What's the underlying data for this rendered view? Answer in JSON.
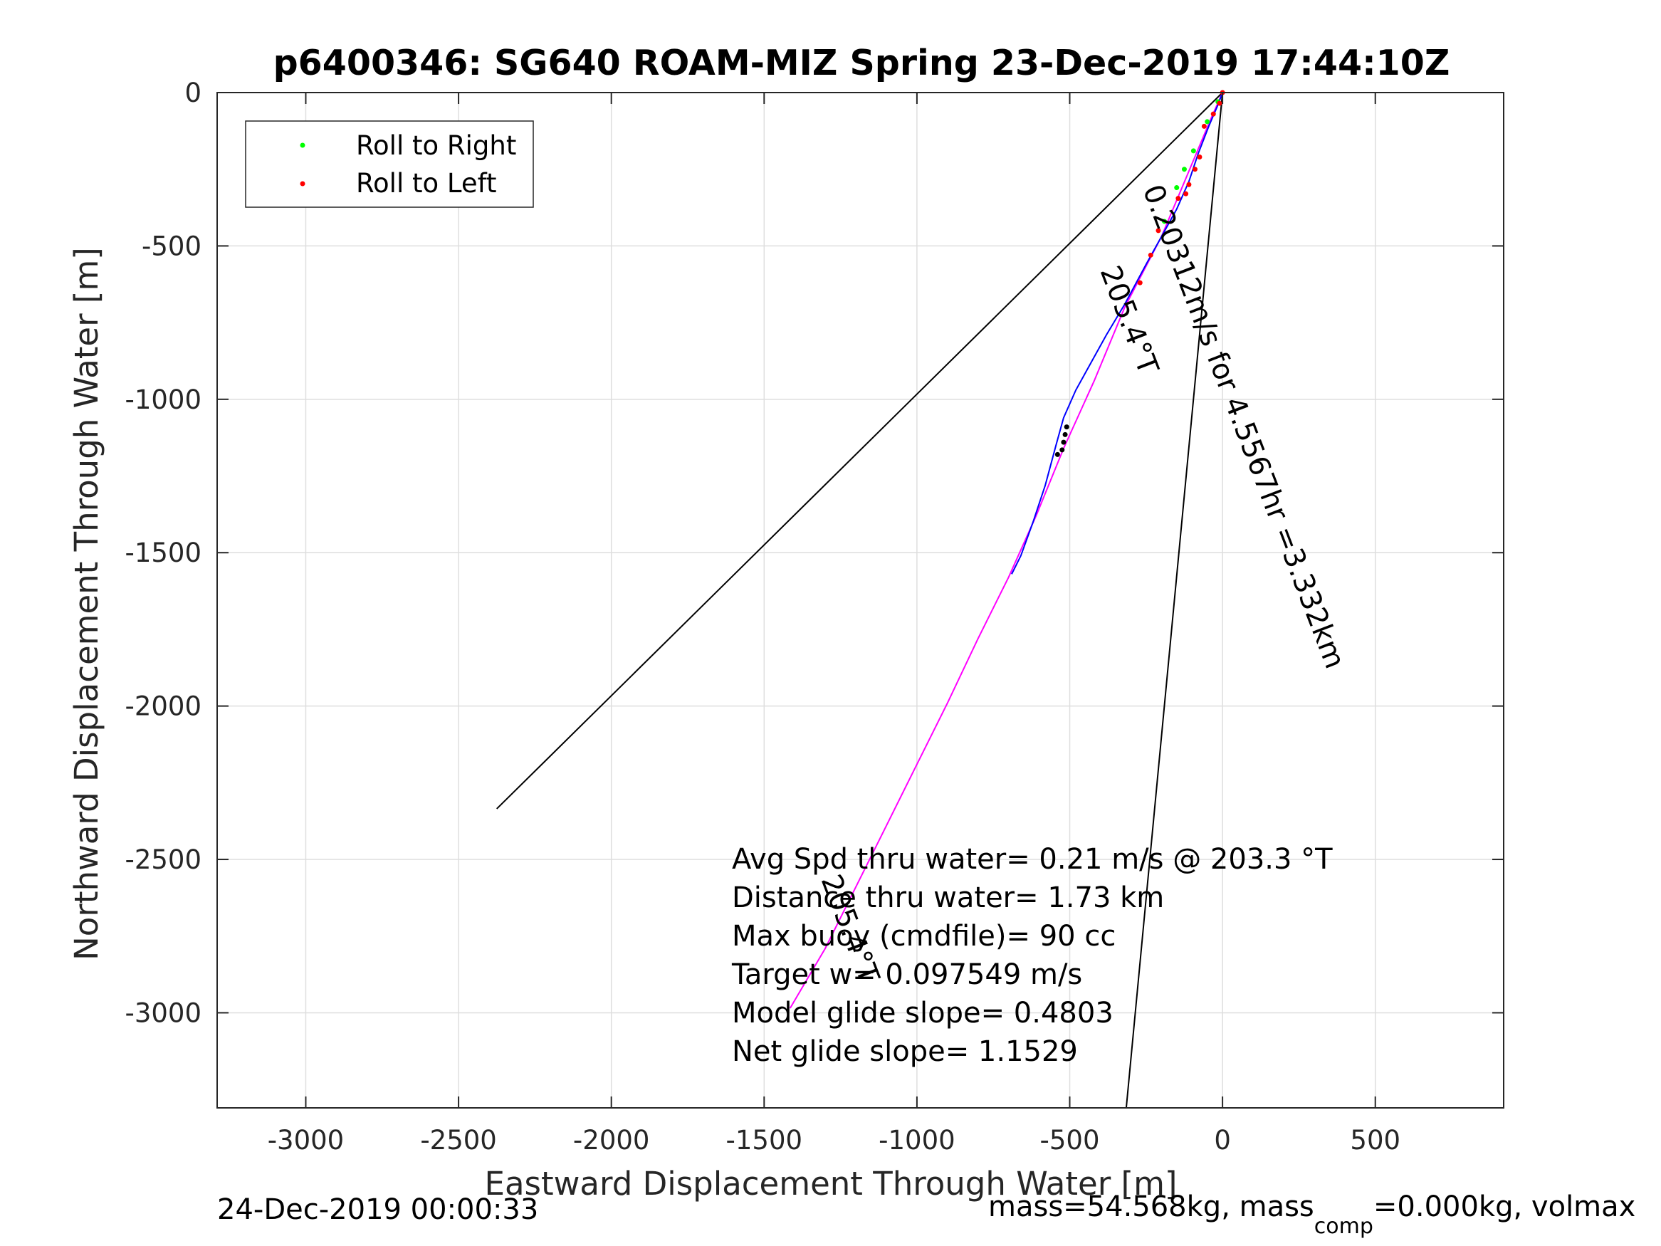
{
  "chart_data": {
    "type": "line",
    "title": "p6400346: SG640 ROAM-MIZ Spring 23-Dec-2019 17:44:10Z",
    "xlabel": "Eastward Displacement Through Water [m]",
    "ylabel": "Northward Displacement Through Water [m]",
    "xlim": [
      -3290,
      920
    ],
    "ylim": [
      -3310,
      0
    ],
    "xticks": [
      -3000,
      -2500,
      -2000,
      -1500,
      -1000,
      -500,
      0,
      500
    ],
    "yticks": [
      0,
      -500,
      -1000,
      -1500,
      -2000,
      -2500,
      -3000
    ],
    "grid": true,
    "legend": {
      "position": "top-left",
      "entries": [
        {
          "label": "Roll to Right",
          "color": "#00ff00"
        },
        {
          "label": "Roll to Left",
          "color": "#ff0000"
        }
      ]
    },
    "reference_lines": [
      {
        "name": "",
        "color": "#000000",
        "x": [
          0,
          -2375
        ],
        "y": [
          0,
          -2335
        ]
      },
      {
        "name": "",
        "color": "#000000",
        "x": [
          0,
          -315
        ],
        "y": [
          0,
          -3310
        ]
      }
    ],
    "series": [
      {
        "name": "",
        "color": "#ff00ff",
        "x": [
          0,
          -40,
          -120,
          -200,
          -320,
          -420,
          -520,
          -610,
          -700,
          -800,
          -900,
          -1000,
          -1100,
          -1200,
          -1300,
          -1415
        ],
        "y": [
          0,
          -90,
          -280,
          -470,
          -700,
          -940,
          -1160,
          -1380,
          -1580,
          -1780,
          -1990,
          -2190,
          -2390,
          -2590,
          -2790,
          -2985
        ]
      },
      {
        "name": "",
        "color": "#0000ff",
        "x": [
          0,
          -15,
          -45,
          -80,
          -110,
          -150,
          -200,
          -250,
          -320,
          -380,
          -430,
          -480,
          -520,
          -545,
          -580,
          -620,
          -660,
          -690
        ],
        "y": [
          0,
          -40,
          -110,
          -200,
          -290,
          -380,
          -470,
          -560,
          -690,
          -790,
          -880,
          -970,
          -1060,
          -1150,
          -1280,
          -1400,
          -1510,
          -1570
        ]
      }
    ],
    "roll_right_points": [
      {
        "x": -15,
        "y": -30
      },
      {
        "x": -50,
        "y": -95
      },
      {
        "x": -95,
        "y": -190
      },
      {
        "x": -125,
        "y": -250
      },
      {
        "x": -150,
        "y": -310
      },
      {
        "x": -190,
        "y": -420
      }
    ],
    "roll_left_points": [
      {
        "x": 0,
        "y": 0
      },
      {
        "x": -10,
        "y": -35
      },
      {
        "x": -30,
        "y": -70
      },
      {
        "x": -60,
        "y": -110
      },
      {
        "x": -75,
        "y": -210
      },
      {
        "x": -90,
        "y": -250
      },
      {
        "x": -110,
        "y": -300
      },
      {
        "x": -120,
        "y": -330
      },
      {
        "x": -145,
        "y": -345
      },
      {
        "x": -210,
        "y": -450
      },
      {
        "x": -235,
        "y": -530
      },
      {
        "x": -270,
        "y": -620
      }
    ],
    "dark_points": [
      {
        "x": -510,
        "y": -1090
      },
      {
        "x": -515,
        "y": -1115
      },
      {
        "x": -520,
        "y": -1140
      },
      {
        "x": -525,
        "y": -1165
      },
      {
        "x": -540,
        "y": -1180
      }
    ],
    "line_labels": [
      {
        "text": "205.4°T"
      },
      {
        "text": "0.20312m/s for 4.5567hr =3.332km"
      },
      {
        "text": "205.4°T"
      }
    ],
    "annotations": [
      "Avg Spd thru water=  0.21 m/s @ 203.3 °T",
      "Distance thru water=  1.73 km",
      "Max buoy (cmdfile)= 90 cc",
      "Target w= 0.097549 m/s",
      "Model glide slope= 0.4803",
      "Net glide slope= 1.1529"
    ]
  },
  "footer": {
    "timestamp": "24-Dec-2019 00:00:33",
    "mass_prefix": "mass=54.568kg, mass",
    "mass_sub": "comp",
    "mass_suffix": "=0.000kg, volmax"
  }
}
